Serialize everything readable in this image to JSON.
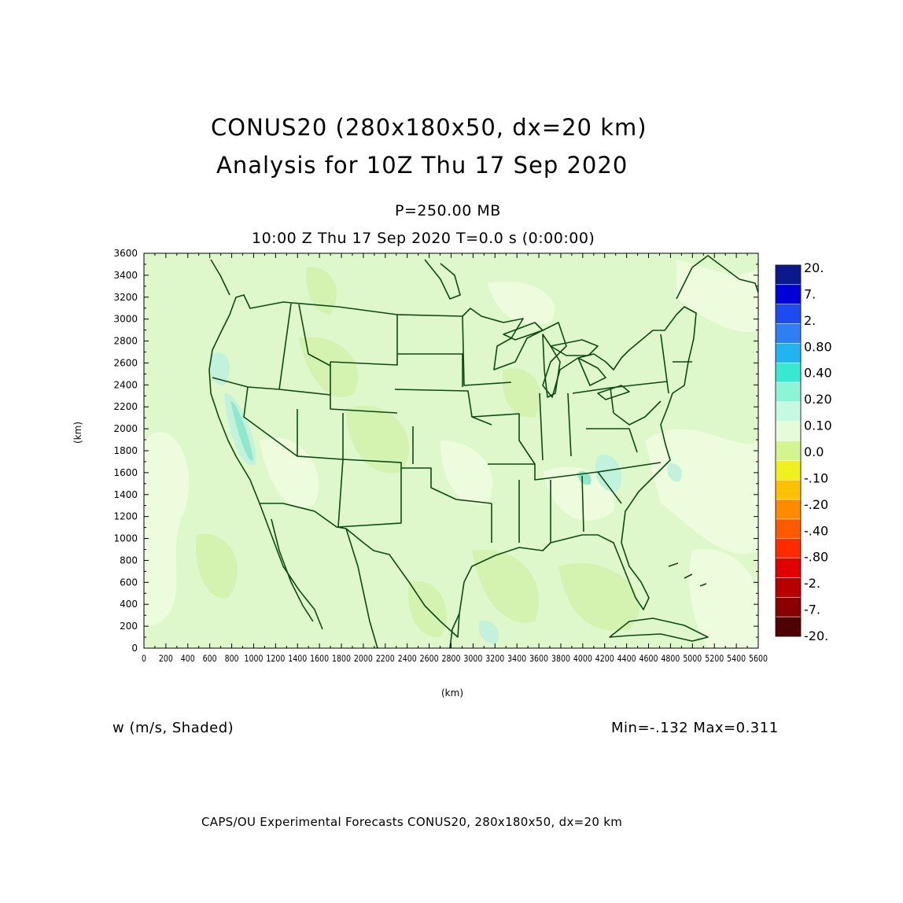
{
  "title": {
    "line1": "CONUS20 (280x180x50, dx=20 km)",
    "line2": "Analysis for 10Z Thu 17 Sep 2020"
  },
  "level_label": "P=250.00 MB",
  "time_label": "10:00 Z Thu 17 Sep 2020    T=0.0 s (0:00:00)",
  "axes": {
    "x_unit": "(km)",
    "y_unit": "(km)",
    "x_ticks": [
      "0",
      "200",
      "400",
      "600",
      "800",
      "1000",
      "1200",
      "1400",
      "1600",
      "1800",
      "2000",
      "2200",
      "2400",
      "2600",
      "2800",
      "3000",
      "3200",
      "3400",
      "3600",
      "3800",
      "4000",
      "4200",
      "4400",
      "4600",
      "4800",
      "5000",
      "5200",
      "5400",
      "5600"
    ],
    "y_ticks": [
      "0",
      "200",
      "400",
      "600",
      "800",
      "1000",
      "1200",
      "1400",
      "1600",
      "1800",
      "2000",
      "2200",
      "2400",
      "2600",
      "2800",
      "3000",
      "3200",
      "3400",
      "3600"
    ]
  },
  "colorbar": {
    "labels": [
      "20.",
      "7.",
      "2.",
      "0.80",
      "0.40",
      "0.20",
      "0.10",
      "0.0",
      "-.10",
      "-.20",
      "-.40",
      "-.80",
      "-2.",
      "-7.",
      "-20."
    ],
    "colors": [
      "#0a1a8c",
      "#0000d8",
      "#1c4cf0",
      "#2f7ef4",
      "#22b4f2",
      "#38e8d0",
      "#8cf5d8",
      "#c6f8e2",
      "#e6fbd8",
      "#d2f590",
      "#f0f020",
      "#ffc000",
      "#ff8a00",
      "#ff5a00",
      "#ff2a00",
      "#e00000",
      "#b80000",
      "#8a0000",
      "#500000"
    ]
  },
  "field_label": "w (m/s, Shaded)",
  "minmax": "Min=-.132  Max=0.311",
  "footer": "CAPS/OU Experimental Forecasts  CONUS20, 280x180x50, dx=20 km",
  "colors": {
    "field_base": "#def8cc",
    "field_light": "#ecfcdc",
    "field_neg": "#d4f3b0",
    "field_pos": "#c2f2dc",
    "field_strong_pos": "#8fe8cc",
    "boundary": "#0d4a12"
  }
}
